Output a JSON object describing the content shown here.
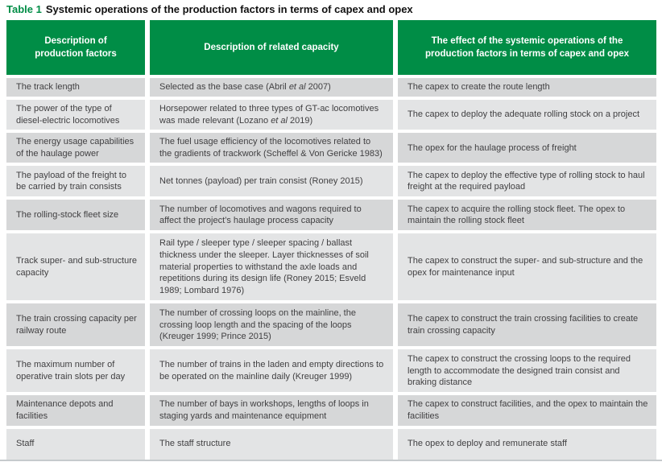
{
  "title": {
    "label": "Table 1",
    "text": "Systemic operations of the production factors in terms of capex and opex"
  },
  "colors": {
    "header_green": "#008D46",
    "row_dark": "#D6D7D8",
    "row_light": "#E3E4E5",
    "text_gray": "#414042",
    "rule_gray": "#C6CACD"
  },
  "table": {
    "columns": [
      {
        "header": "Description of\nproduction factors"
      },
      {
        "header": "Description of related capacity"
      },
      {
        "header": "The effect of the systemic operations of the\nproduction factors in terms of capex and opex"
      }
    ],
    "rows": [
      {
        "factor": "The track length",
        "capacity": "Selected as the base case (Abril et al 2007)",
        "effect": "The capex to create the route length"
      },
      {
        "factor": "The power of the type of diesel-electric locomotives",
        "capacity": "Horsepower related to three types of GT-ac locomotives was made relevant (Lozano et al 2019)",
        "effect": "The capex to deploy the adequate rolling stock on a project"
      },
      {
        "factor": "The energy usage capabilities of the haulage power",
        "capacity": "The fuel usage efficiency of the locomotives related to the gradients of trackwork (Scheffel & Von Gericke 1983)",
        "effect": "The opex for the haulage process of freight"
      },
      {
        "factor": "The payload of the freight to be carried by train consists",
        "capacity": "Net tonnes (payload) per train consist (Roney 2015)",
        "effect": "The capex to deploy the effective type of rolling stock to haul freight at the required payload"
      },
      {
        "factor": "The rolling-stock fleet size",
        "capacity": "The number of locomotives and wagons required to affect the project’s haulage process capacity",
        "effect": "The capex to acquire the rolling stock fleet. The opex to maintain the rolling stock fleet"
      },
      {
        "factor": "Track super- and sub-structure capacity",
        "capacity": "Rail type / sleeper type / sleeper spacing / ballast thickness under the sleeper. Layer thicknesses of soil material properties to withstand the axle loads and repetitions during its design life (Roney 2015; Esveld 1989; Lombard 1976)",
        "effect": "The capex to construct the super- and sub-structure and the opex for maintenance input"
      },
      {
        "factor": "The train crossing capacity per railway route",
        "capacity": "The number of crossing loops on the mainline, the crossing loop length and the spacing of the loops (Kreuger 1999; Prince 2015)",
        "effect": "The capex to construct the train crossing facilities to create train crossing capacity"
      },
      {
        "factor": "The maximum number of operative train slots per day",
        "capacity": "The number of trains in the laden and empty directions to be operated on the mainline daily (Kreuger 1999)",
        "effect": "The capex to construct the crossing loops to the required length to accommodate the designed train consist and braking distance"
      },
      {
        "factor": "Maintenance depots and facilities",
        "capacity": "The number of bays in workshops, lengths of loops in staging yards and maintenance equipment",
        "effect": "The capex to construct facilities, and the opex to maintain the facilities"
      },
      {
        "factor": "Staff",
        "capacity": "The staff structure",
        "effect": "The opex to deploy and remunerate staff"
      }
    ]
  }
}
